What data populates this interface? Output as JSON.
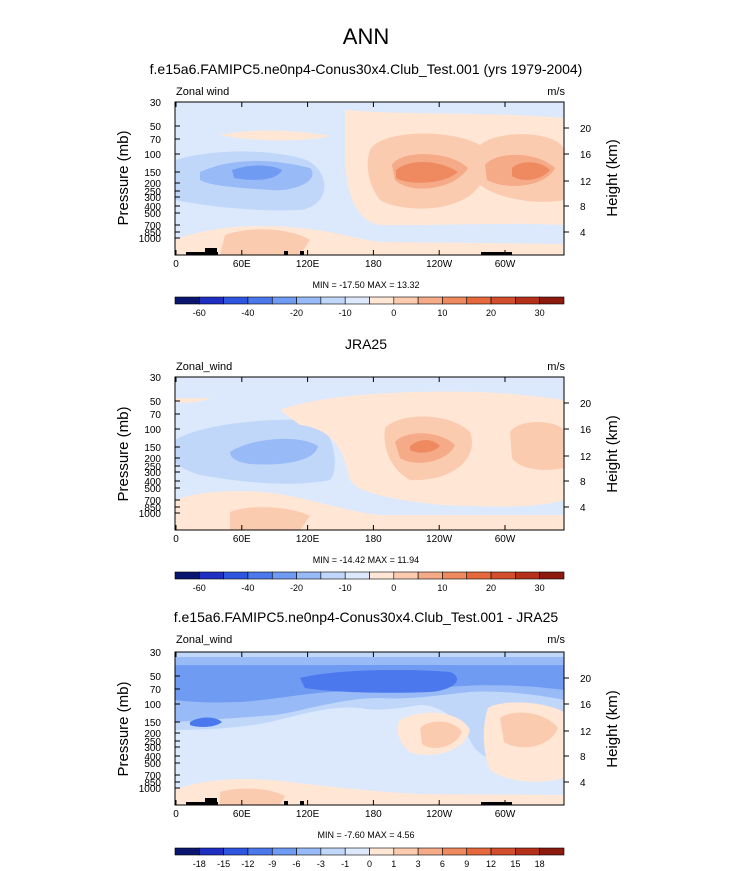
{
  "page": {
    "title": "ANN"
  },
  "colors": {
    "neg_scale": [
      "#0a1570",
      "#1f2fc2",
      "#2d55df",
      "#4b78ed",
      "#6f9bf3",
      "#98bbf7",
      "#c0d7fa",
      "#dce9fc"
    ],
    "pos_scale": [
      "#ffe6d5",
      "#fbcbb0",
      "#f5aa88",
      "#ef8a60",
      "#e5693d",
      "#d24e2c",
      "#b53019",
      "#8c1b0e"
    ],
    "land": "#000000"
  },
  "chart_data": [
    {
      "type": "heatmap",
      "title": "f.e15a6.FAMIPC5.ne0np4-Conus30x4.Club_Test.001 (yrs 1979-2004)",
      "field_label": "Zonal wind",
      "units": "m/s",
      "ylabel": "Pressure (mb)",
      "ylabel_right": "Height (km)",
      "pressure_ticks": [
        "30",
        "50",
        "70",
        "100",
        "150",
        "200",
        "250",
        "300",
        "400",
        "500",
        "700",
        "850",
        "1000"
      ],
      "height_ticks": [
        "20",
        "16",
        "12",
        "8",
        "4"
      ],
      "longitude_ticks": [
        "0",
        "60E",
        "120E",
        "180",
        "120W",
        "60W"
      ],
      "min_max": "MIN = -17.50  MAX = 13.32",
      "colorbar_labels": [
        "-60",
        "-40",
        "-20",
        "-10",
        "0",
        "10",
        "20",
        "30"
      ],
      "min": -17.5,
      "max": 13.32
    },
    {
      "type": "heatmap",
      "title": "JRA25",
      "field_label": "Zonal_wind",
      "units": "m/s",
      "ylabel": "Pressure (mb)",
      "ylabel_right": "Height (km)",
      "pressure_ticks": [
        "30",
        "50",
        "70",
        "100",
        "150",
        "200",
        "250",
        "300",
        "400",
        "500",
        "700",
        "850",
        "1000"
      ],
      "height_ticks": [
        "20",
        "16",
        "12",
        "8",
        "4"
      ],
      "longitude_ticks": [
        "0",
        "60E",
        "120E",
        "180",
        "120W",
        "60W"
      ],
      "min_max": "MIN = -14.42  MAX = 11.94",
      "colorbar_labels": [
        "-60",
        "-40",
        "-20",
        "-10",
        "0",
        "10",
        "20",
        "30"
      ],
      "min": -14.42,
      "max": 11.94
    },
    {
      "type": "heatmap",
      "title": "f.e15a6.FAMIPC5.ne0np4-Conus30x4.Club_Test.001 - JRA25",
      "field_label": "Zonal_wind",
      "units": "m/s",
      "ylabel": "Pressure (mb)",
      "ylabel_right": "Height (km)",
      "pressure_ticks": [
        "30",
        "50",
        "70",
        "100",
        "150",
        "200",
        "250",
        "300",
        "400",
        "500",
        "700",
        "850",
        "1000"
      ],
      "height_ticks": [
        "20",
        "16",
        "12",
        "8",
        "4"
      ],
      "longitude_ticks": [
        "0",
        "60E",
        "120E",
        "180",
        "120W",
        "60W"
      ],
      "min_max": "MIN = -7.60  MAX =  4.56",
      "colorbar_labels": [
        "-18",
        "-15",
        "-12",
        "-9",
        "-6",
        "-3",
        "-1",
        "0",
        "1",
        "3",
        "6",
        "9",
        "12",
        "15",
        "18"
      ],
      "min": -7.6,
      "max": 4.56
    }
  ]
}
